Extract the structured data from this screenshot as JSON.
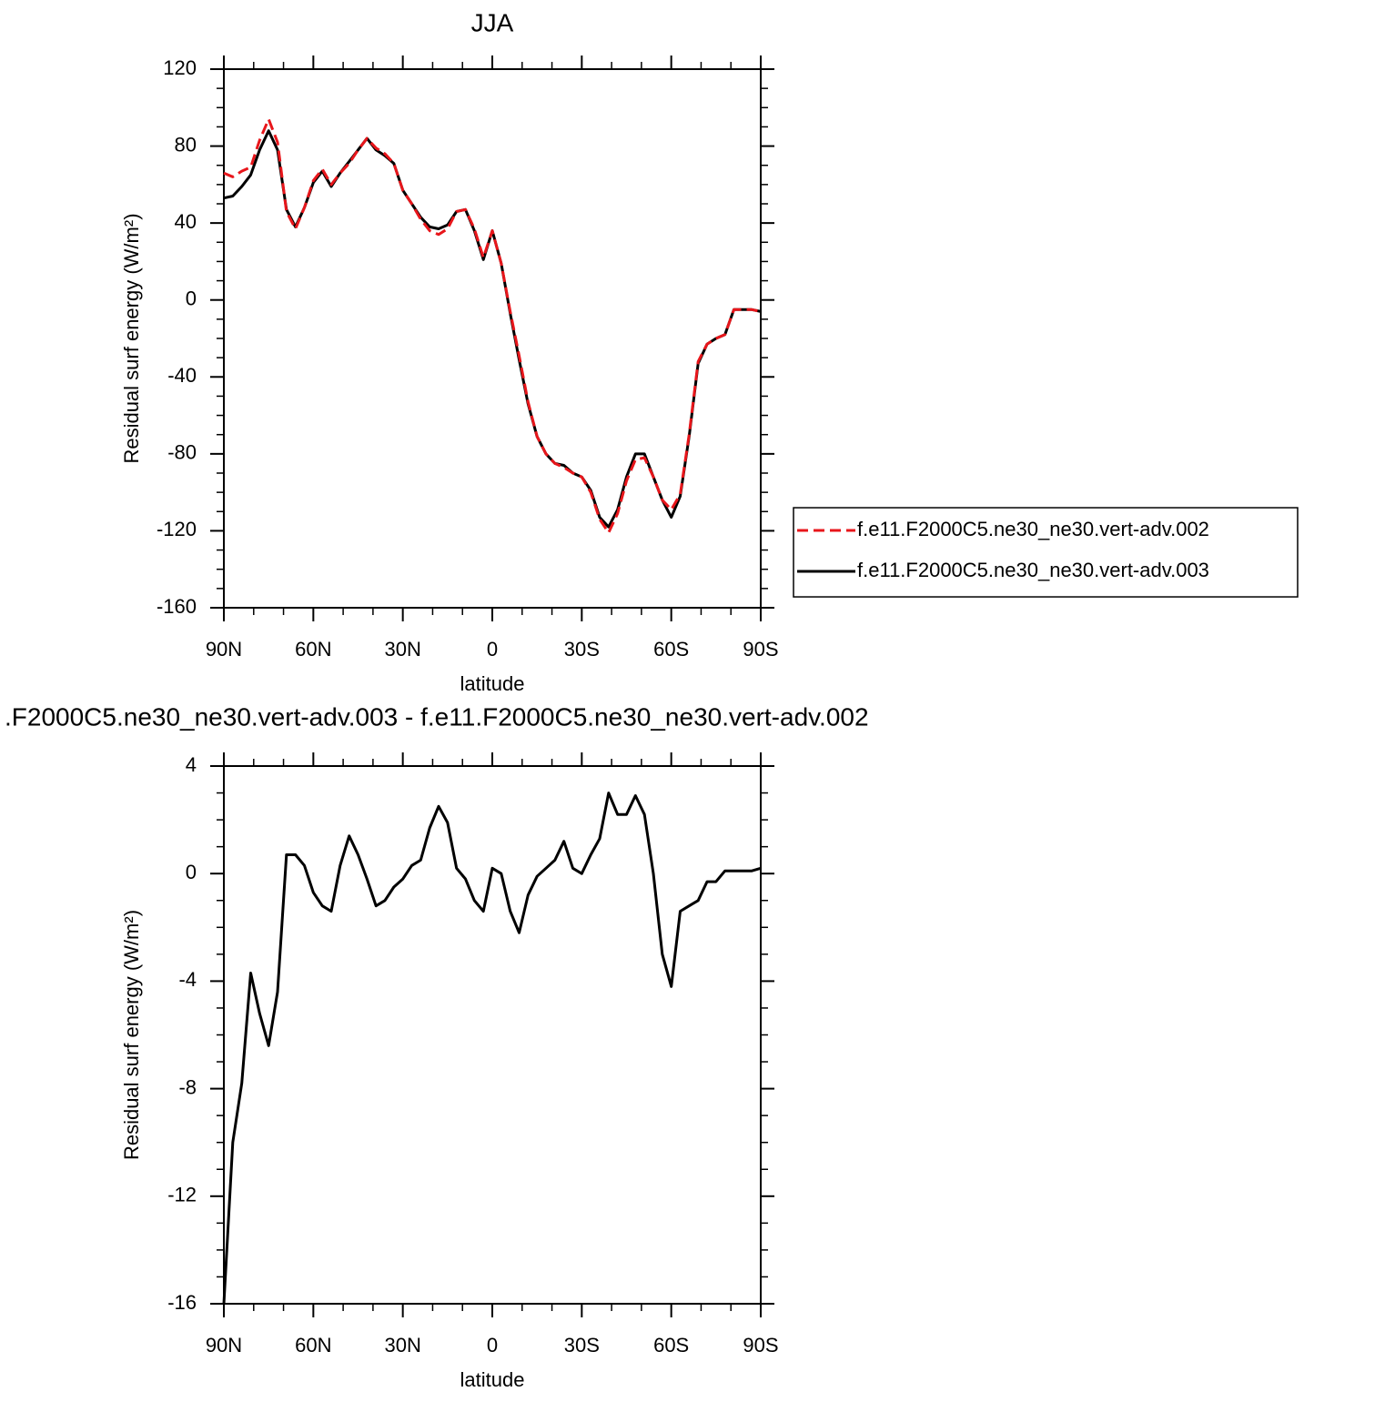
{
  "chart_data": [
    {
      "type": "line",
      "title": "JJA",
      "x": [
        90,
        87,
        84,
        81,
        78,
        75,
        72,
        69,
        66,
        63,
        60,
        57,
        54,
        51,
        48,
        45,
        42,
        39,
        36,
        33,
        30,
        27,
        24,
        21,
        18,
        15,
        12,
        9,
        6,
        3,
        0,
        -3,
        -6,
        -9,
        -12,
        -15,
        -18,
        -21,
        -24,
        -27,
        -30,
        -33,
        -36,
        -39,
        -42,
        -45,
        -48,
        -51,
        -54,
        -57,
        -60,
        -63,
        -66,
        -69,
        -72,
        -75,
        -78,
        -81,
        -84,
        -87,
        -90
      ],
      "series": [
        {
          "name": "f.e11.F2000C5.ne30_ne30.vert-adv.002",
          "color": "#e8161b",
          "dashed": true,
          "values": [
            66,
            64,
            67,
            69,
            83,
            94,
            82,
            46,
            37,
            48,
            62,
            68,
            60,
            66,
            71,
            78,
            84,
            79,
            76,
            71,
            57,
            50,
            42,
            36,
            34,
            37,
            46,
            47,
            37,
            22,
            36,
            19,
            -6,
            -29,
            -53,
            -71,
            -80,
            -85,
            -87,
            -90,
            -92,
            -100,
            -114,
            -121,
            -111,
            -94,
            -83,
            -82,
            -92,
            -104,
            -109,
            -101,
            -70,
            -32,
            -23,
            -20,
            -18,
            -5,
            -5,
            -5,
            -6
          ]
        },
        {
          "name": "f.e11.F2000C5.ne30_ne30.vert-adv.003",
          "color": "#000000",
          "dashed": false,
          "values": [
            53,
            54,
            59,
            65,
            78,
            88,
            78,
            47,
            38,
            48,
            61,
            67,
            59,
            66,
            72,
            78,
            84,
            78,
            75,
            71,
            57,
            50,
            43,
            38,
            37,
            39,
            46,
            47,
            36,
            21,
            36,
            19,
            -7,
            -31,
            -54,
            -71,
            -80,
            -85,
            -86,
            -90,
            -92,
            -99,
            -113,
            -118,
            -109,
            -92,
            -80,
            -80,
            -92,
            -104,
            -113,
            -102,
            -71,
            -33,
            -23,
            -20,
            -18,
            -5,
            -5,
            -5,
            -6
          ]
        }
      ],
      "xlim": [
        90,
        -90
      ],
      "xticks": [
        {
          "value": 90,
          "label": "90N"
        },
        {
          "value": 60,
          "label": "60N"
        },
        {
          "value": 30,
          "label": "30N"
        },
        0,
        {
          "value": -30,
          "label": "30S"
        },
        {
          "value": -60,
          "label": "60S"
        },
        {
          "value": -90,
          "label": "90S"
        }
      ],
      "ylim": [
        -160,
        120
      ],
      "yticks": [
        -160,
        -120,
        -80,
        -40,
        0,
        40,
        80,
        120
      ],
      "xlabel": "latitude",
      "ylabel": "Residual surf energy (W/m²)",
      "legend": "right"
    },
    {
      "type": "line",
      "title": ".F2000C5.ne30_ne30.vert-adv.003 - f.e11.F2000C5.ne30_ne30.vert-adv.002",
      "x": [
        90,
        87,
        84,
        81,
        78,
        75,
        72,
        69,
        66,
        63,
        60,
        57,
        54,
        51,
        48,
        45,
        42,
        39,
        36,
        33,
        30,
        27,
        24,
        21,
        18,
        15,
        12,
        9,
        6,
        3,
        0,
        -3,
        -6,
        -9,
        -12,
        -15,
        -18,
        -21,
        -24,
        -27,
        -30,
        -33,
        -36,
        -39,
        -42,
        -45,
        -48,
        -51,
        -54,
        -57,
        -60,
        -63,
        -66,
        -69,
        -72,
        -75,
        -78,
        -81,
        -84,
        -87,
        -90
      ],
      "values": [
        -16,
        -10,
        -7.8,
        -3.7,
        -5.2,
        -6.4,
        -4.4,
        0.7,
        0.7,
        0.3,
        -0.7,
        -1.2,
        -1.4,
        0.3,
        1.4,
        0.7,
        -0.2,
        -1.2,
        -1,
        -0.5,
        -0.2,
        0.3,
        0.5,
        1.7,
        2.5,
        1.9,
        0.2,
        -0.2,
        -1,
        -1.4,
        0.2,
        0,
        -1.4,
        -2.2,
        -0.8,
        -0.1,
        0.2,
        0.5,
        1.2,
        0.2,
        0,
        0.7,
        1.3,
        3,
        2.2,
        2.2,
        2.9,
        2.2,
        0,
        -3,
        -4.2,
        -1.4,
        -1.2,
        -1,
        -0.3,
        -0.3,
        0.1,
        0.1,
        0.1,
        0.1,
        0.2
      ],
      "color": "#000000",
      "xlim": [
        90,
        -90
      ],
      "xticks": [
        {
          "value": 90,
          "label": "90N"
        },
        {
          "value": 60,
          "label": "60N"
        },
        {
          "value": 30,
          "label": "30N"
        },
        0,
        {
          "value": -30,
          "label": "30S"
        },
        {
          "value": -60,
          "label": "60S"
        },
        {
          "value": -90,
          "label": "90S"
        }
      ],
      "ylim": [
        -16,
        4
      ],
      "yticks": [
        -16,
        -12,
        -8,
        -4,
        0,
        4
      ],
      "xlabel": "latitude",
      "ylabel": "Residual surf energy (W/m²)"
    }
  ]
}
